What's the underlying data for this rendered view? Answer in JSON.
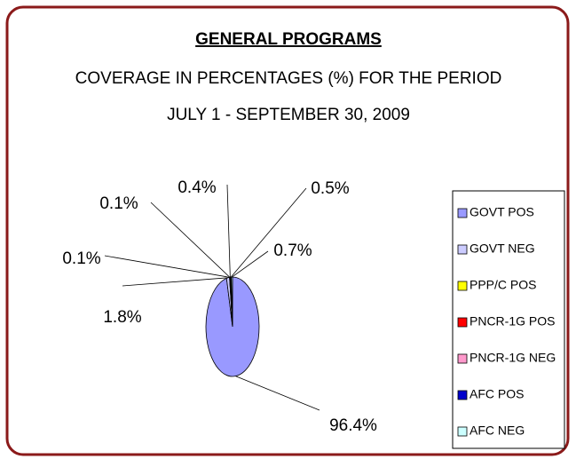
{
  "chart_data": {
    "type": "pie",
    "title": "GENERAL PROGRAMS",
    "subtitle": [
      "COVERAGE IN PERCENTAGES (%) FOR THE PERIOD",
      "JULY 1 - SEPTEMBER 30, 2009"
    ],
    "categories": [
      "GOVT  POS",
      "GOVT  NEG",
      "PPP/C POS",
      "PNCR-1G POS",
      "PNCR-1G NEG",
      "AFC POS",
      "AFC NEG"
    ],
    "values": [
      96.4,
      1.8,
      0.1,
      0.1,
      0.4,
      0.5,
      0.7
    ],
    "value_labels": [
      "96.4%",
      "1.8%",
      "0.1%",
      "0.1%",
      "0.4%",
      "0.5%",
      "0.7%"
    ],
    "colors": [
      "#9999ff",
      "#ccccff",
      "#ffff00",
      "#ff0000",
      "#ff99cc",
      "#0000cc",
      "#ccffff"
    ],
    "legend": "right"
  }
}
